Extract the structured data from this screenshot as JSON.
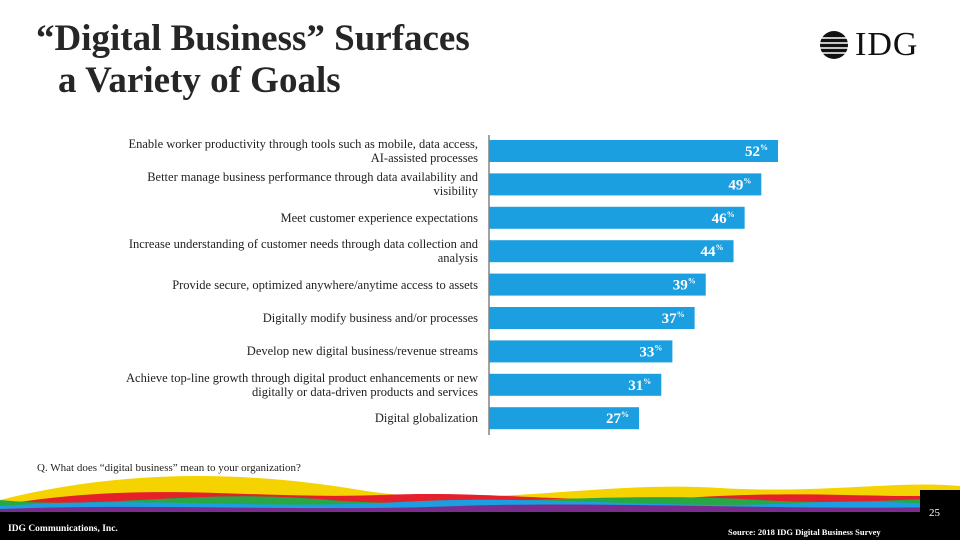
{
  "header": {
    "title_lines": [
      "“Digital Business” Surfaces",
      "a Variety of Goals"
    ],
    "logo": "IDG"
  },
  "chart_data": {
    "type": "bar",
    "orientation": "horizontal",
    "color": "#1b9fe0",
    "categories": [
      "Enable worker productivity through tools such as mobile, data access, AI-assisted processes",
      "Better manage business performance through data availability and visibility",
      "Meet customer experience expectations",
      "Increase understanding of customer needs through data collection and analysis",
      "Provide secure, optimized anywhere/anytime access to assets",
      "Digitally modify business and/or processes",
      "Develop new digital business/revenue streams",
      "Achieve top-line growth through digital product enhancements or new digitally or data-driven products and services",
      "Digital globalization"
    ],
    "values": [
      52,
      49,
      46,
      44,
      39,
      37,
      33,
      31,
      27
    ],
    "value_labels": [
      "52%",
      "49%",
      "46%",
      "44%",
      "39%",
      "37%",
      "33%",
      "31%",
      "27%"
    ]
  },
  "footnote": "Q. What does “digital business” mean to your organization?",
  "footer": {
    "company": "IDG Communications, Inc.",
    "source": "Source: 2018 IDG Digital Business Survey",
    "page": "25"
  }
}
